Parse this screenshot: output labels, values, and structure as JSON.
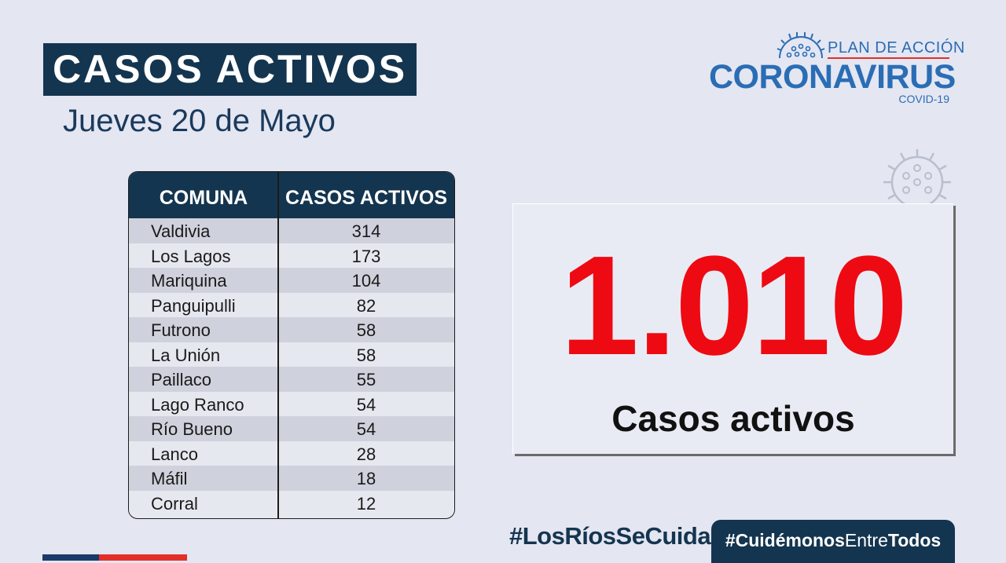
{
  "header": {
    "title": "CASOS ACTIVOS",
    "date": "Jueves 20 de Mayo"
  },
  "logo": {
    "plan": "PLAN DE ACCIÓN",
    "brand": "CORONAVIRUS",
    "sub": "COVID-19",
    "icon": "virus-icon"
  },
  "table": {
    "headers": [
      "COMUNA",
      "CASOS ACTIVOS"
    ],
    "rows": [
      {
        "comuna": "Valdivia",
        "casos": "314"
      },
      {
        "comuna": "Los Lagos",
        "casos": "173"
      },
      {
        "comuna": "Mariquina",
        "casos": "104"
      },
      {
        "comuna": "Panguipulli",
        "casos": "82"
      },
      {
        "comuna": "Futrono",
        "casos": "58"
      },
      {
        "comuna": "La Unión",
        "casos": "58"
      },
      {
        "comuna": "Paillaco",
        "casos": "55"
      },
      {
        "comuna": "Lago Ranco",
        "casos": "54"
      },
      {
        "comuna": "Río Bueno",
        "casos": "54"
      },
      {
        "comuna": "Lanco",
        "casos": "28"
      },
      {
        "comuna": "Máfil",
        "casos": "18"
      },
      {
        "comuna": "Corral",
        "casos": "12"
      }
    ]
  },
  "total": {
    "value": "1.010",
    "label": "Casos activos"
  },
  "footer": {
    "hashtag1": "#LosRíosSeCuida",
    "hashtag2_a": "#Cuidémonos",
    "hashtag2_b": "Entre",
    "hashtag2_c": "Todos"
  },
  "colors": {
    "navy": "#14354f",
    "red": "#ee0a12",
    "blue": "#2a6db5",
    "background": "#e4e6f2"
  }
}
